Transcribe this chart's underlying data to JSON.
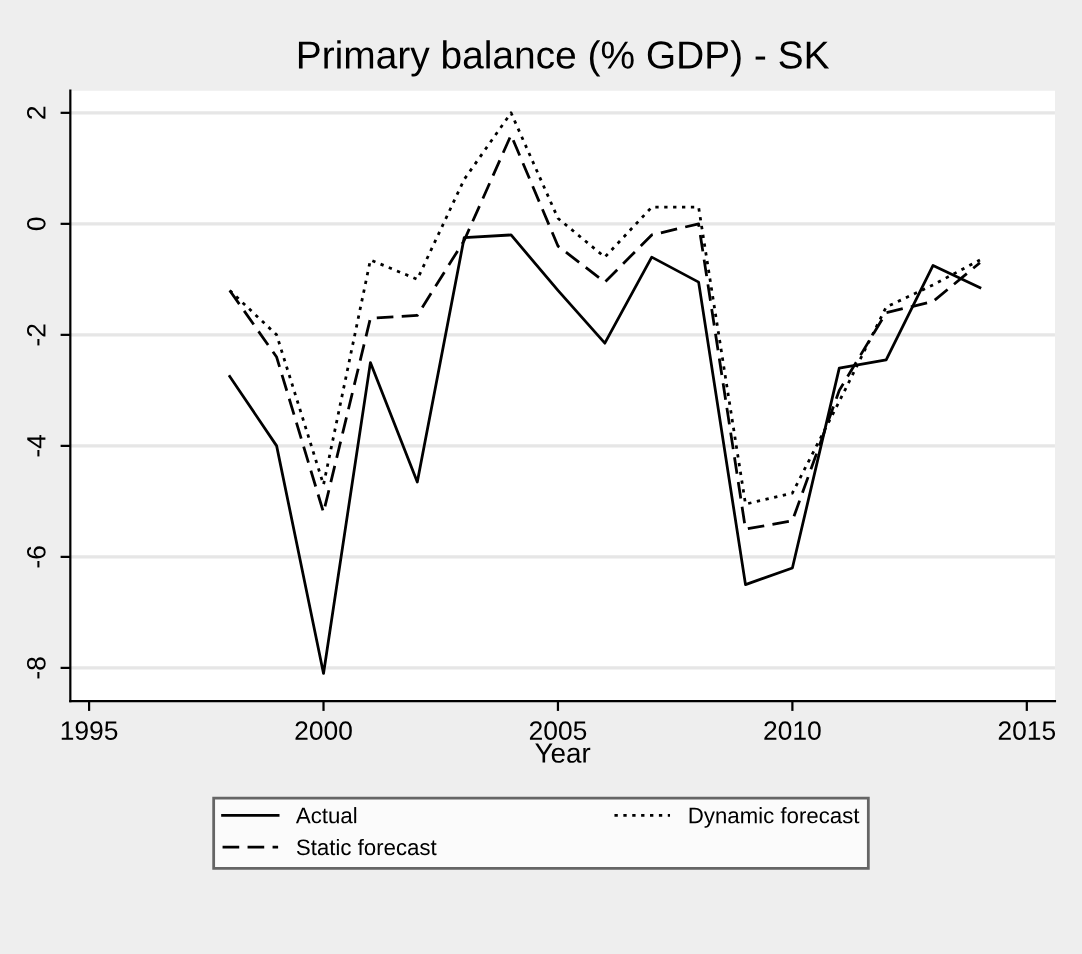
{
  "chart_data": {
    "type": "line",
    "title": "Primary balance (% GDP) - SK",
    "xlabel": "Year",
    "x": [
      1998,
      1999,
      2000,
      2001,
      2002,
      2003,
      2004,
      2005,
      2006,
      2007,
      2008,
      2009,
      2010,
      2011,
      2012,
      2013,
      2014
    ],
    "series": [
      {
        "name": "Actual",
        "color": "#000000",
        "line_style": "solid",
        "values": [
          -2.75,
          -4.0,
          -8.1,
          -2.5,
          -4.65,
          -0.25,
          -0.2,
          -1.2,
          -2.15,
          -0.6,
          -1.05,
          -6.5,
          -6.2,
          -2.6,
          -2.45,
          -0.75,
          -1.15
        ]
      },
      {
        "name": "Static forecast",
        "color": "#000000",
        "line_style": "dashed",
        "values": [
          -1.2,
          -2.4,
          -5.2,
          -1.7,
          -1.65,
          -0.3,
          1.6,
          -0.4,
          -1.05,
          -0.2,
          0.0,
          -5.5,
          -5.35,
          -3.0,
          -1.6,
          -1.4,
          -0.7
        ]
      },
      {
        "name": "Dynamic forecast",
        "color": "#000000",
        "line_style": "dotted",
        "values": [
          -1.2,
          -2.0,
          -4.7,
          -0.65,
          -1.0,
          0.8,
          2.0,
          0.1,
          -0.6,
          0.3,
          0.3,
          -5.05,
          -4.85,
          -3.2,
          -1.5,
          -1.1,
          -0.65
        ]
      }
    ],
    "xlim": [
      1994.6,
      2015.6
    ],
    "xticks": [
      1995,
      2000,
      2005,
      2010,
      2015
    ],
    "ylim": [
      -8.6,
      2.4
    ],
    "yticks": [
      -8,
      -6,
      -4,
      -2,
      0,
      2
    ],
    "grid": "y",
    "legend": "bottom",
    "marker": "none"
  }
}
